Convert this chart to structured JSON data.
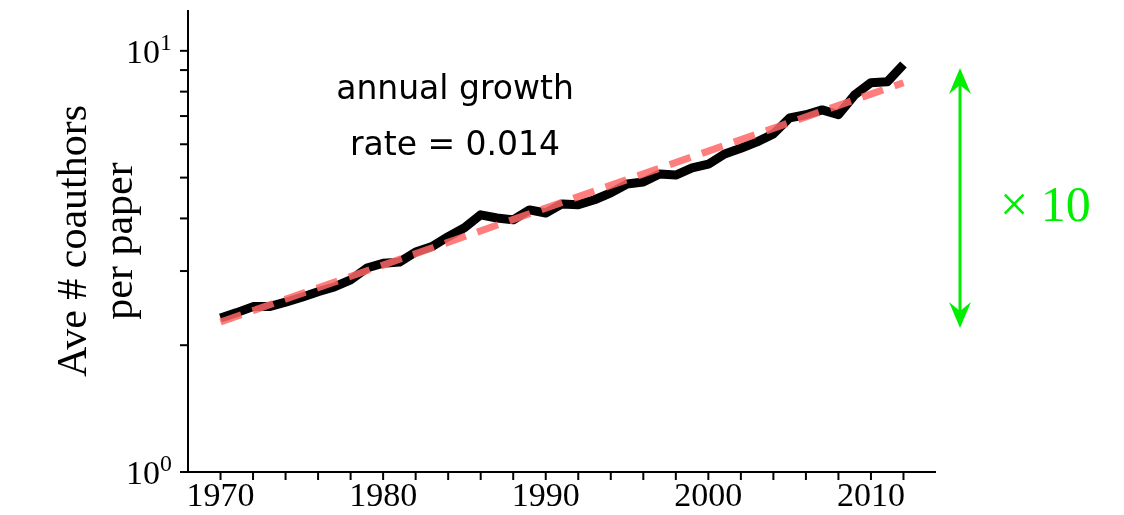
{
  "chart_data": {
    "type": "line",
    "ylabel": "Ave # coauthors per paper",
    "annotations": [
      "annual growth rate = 0.014",
      "× 10"
    ],
    "x": [
      1970,
      1971,
      1972,
      1973,
      1974,
      1975,
      1976,
      1977,
      1978,
      1979,
      1980,
      1981,
      1982,
      1983,
      1984,
      1985,
      1986,
      1987,
      1988,
      1989,
      1990,
      1991,
      1992,
      1993,
      1994,
      1995,
      1996,
      1997,
      1998,
      1999,
      2000,
      2001,
      2002,
      2003,
      2004,
      2005,
      2006,
      2007,
      2008,
      2009,
      2010,
      2011,
      2012
    ],
    "series": [
      {
        "color": "#000000",
        "line_style": "solid",
        "values": [
          2.32,
          2.39,
          2.47,
          2.47,
          2.53,
          2.6,
          2.68,
          2.75,
          2.86,
          3.05,
          3.13,
          3.15,
          3.33,
          3.43,
          3.62,
          3.8,
          4.08,
          4.01,
          3.97,
          4.19,
          4.12,
          4.33,
          4.31,
          4.43,
          4.6,
          4.83,
          4.88,
          5.1,
          5.07,
          5.27,
          5.38,
          5.69,
          5.87,
          6.08,
          6.35,
          6.93,
          7.05,
          7.24,
          7.05,
          7.86,
          8.4,
          8.44,
          9.28
        ]
      },
      {
        "type": "line",
        "color": "#ff6666",
        "line_style": "dashed",
        "x": [
          1970,
          2012
        ],
        "values": [
          2.27,
          8.4
        ]
      }
    ],
    "log": "y",
    "xlim": [
      1968,
      2014
    ],
    "ylim": [
      1,
      12.5
    ],
    "xticks": [
      1970,
      {
        "value": 1972,
        "label": null
      },
      {
        "value": 1974,
        "label": null
      },
      {
        "value": 1976,
        "label": null
      },
      {
        "value": 1978,
        "label": null
      },
      1980,
      {
        "value": 1982,
        "label": null
      },
      {
        "value": 1984,
        "label": null
      },
      {
        "value": 1986,
        "label": null
      },
      {
        "value": 1988,
        "label": null
      },
      1990,
      {
        "value": 1992,
        "label": null
      },
      {
        "value": 1994,
        "label": null
      },
      {
        "value": 1996,
        "label": null
      },
      {
        "value": 1998,
        "label": null
      },
      2000,
      {
        "value": 2002,
        "label": null
      },
      {
        "value": 2004,
        "label": null
      },
      {
        "value": 2006,
        "label": null
      },
      {
        "value": 2008,
        "label": null
      },
      2010,
      {
        "value": 2012,
        "label": null
      }
    ],
    "yticks": [
      {
        "value": 1,
        "label": "10$^{0}$"
      },
      {
        "value": 2,
        "label": null
      },
      {
        "value": 3,
        "label": null
      },
      {
        "value": 4,
        "label": null
      },
      {
        "value": 5,
        "label": null
      },
      {
        "value": 6,
        "label": null
      },
      {
        "value": 7,
        "label": null
      },
      {
        "value": 8,
        "label": null
      },
      {
        "value": 9,
        "label": null
      },
      {
        "value": 10,
        "label": "10$^{1}$"
      }
    ],
    "grid": false,
    "legend": false,
    "marker": "none"
  }
}
